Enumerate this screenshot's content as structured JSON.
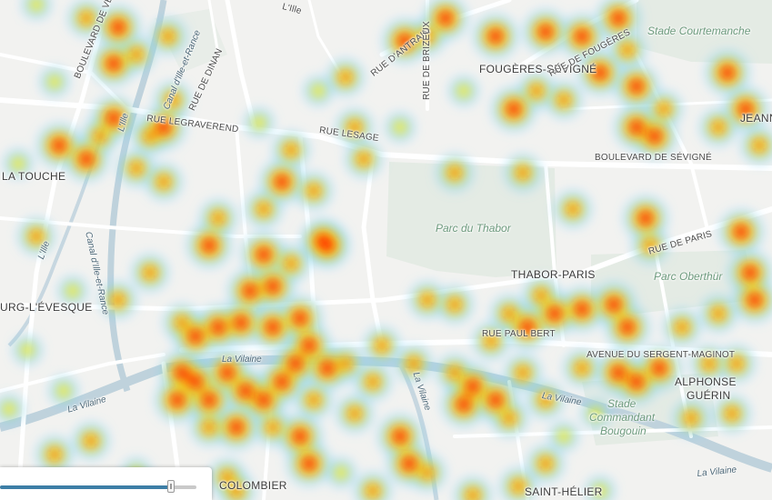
{
  "map": {
    "districts": [
      {
        "id": "fougeres-sevigne",
        "text": "FOUGÈRES-SÉVIGNÉ"
      },
      {
        "id": "thabor-paris",
        "text": "THABOR-PARIS"
      },
      {
        "id": "la-touche",
        "text": "LA TOUCHE"
      },
      {
        "id": "bourg-leveque",
        "text": "URG-L'ÉVESQUE"
      },
      {
        "id": "alphonse-guerin-1",
        "text": "ALPHONSE"
      },
      {
        "id": "alphonse-guerin-2",
        "text": "GUÉRIN"
      },
      {
        "id": "colombier",
        "text": "COLOMBIER"
      },
      {
        "id": "saint-helier",
        "text": "SAINT-HÉLIER"
      },
      {
        "id": "jeanne",
        "text": "JEANN"
      }
    ],
    "streets": [
      {
        "id": "rue-legraverend",
        "text": "RUE LEGRAVEREND"
      },
      {
        "id": "rue-lesage",
        "text": "RUE LESAGE"
      },
      {
        "id": "rue-de-dinan",
        "text": "RUE DE DINAN"
      },
      {
        "id": "rue-dantrain",
        "text": "RUE D'ANTRAIN"
      },
      {
        "id": "rue-de-brizeux",
        "text": "RUE DE BRIZEUX"
      },
      {
        "id": "rue-de-fougeres",
        "text": "RUE DE FOUGÈRES"
      },
      {
        "id": "boulevard-de-sevigne",
        "text": "BOULEVARD DE SÉVIGNÉ"
      },
      {
        "id": "rue-de-paris",
        "text": "RUE DE PARIS"
      },
      {
        "id": "rue-paul-bert",
        "text": "RUE PAUL BERT"
      },
      {
        "id": "avenue-sergent-maginot",
        "text": "AVENUE DU SERGENT-MAGINOT"
      },
      {
        "id": "boulevard-de-verdun",
        "text": "BOULEVARD DE VER"
      },
      {
        "id": "lille",
        "text": "L'Ille"
      }
    ],
    "waters": [
      {
        "id": "canal-1",
        "text": "Canal d'Ille-et-Rance"
      },
      {
        "id": "canal-2",
        "text": "Canal d'Ille-et-Rance"
      },
      {
        "id": "lille-1",
        "text": "L'Ille"
      },
      {
        "id": "lille-2",
        "text": "L'Ille"
      },
      {
        "id": "la-vilaine-1",
        "text": "La Vilaine"
      },
      {
        "id": "la-vilaine-2",
        "text": "La Vilaine"
      },
      {
        "id": "la-vilaine-3",
        "text": "La Vilaine"
      },
      {
        "id": "la-vilaine-4",
        "text": "La Vilaine"
      },
      {
        "id": "la-vilaine-5",
        "text": "La Vilaine"
      }
    ],
    "parks": [
      {
        "id": "parc-du-thabor",
        "text": "Parc du Thabor"
      },
      {
        "id": "parc-oberthur",
        "text": "Parc Oberthür"
      },
      {
        "id": "stade-courtemanche",
        "text": "Stade Courtemanche"
      },
      {
        "id": "stade-bougouin-1",
        "text": "Stade"
      },
      {
        "id": "stade-bougouin-2",
        "text": "Commandant"
      },
      {
        "id": "stade-bougouin-3",
        "text": "Bougouin"
      }
    ]
  },
  "time_slider": {
    "value": 0.87
  },
  "colors": {
    "background": "#f2f2f0",
    "roads": "#ffffff",
    "water": "#bfd2dc",
    "park": "#dfe9df",
    "heat_low": "#7fd0ff",
    "heat_mid": "#ffee00",
    "heat_high": "#ff2200",
    "slider_fill": "#3d7ea6"
  }
}
